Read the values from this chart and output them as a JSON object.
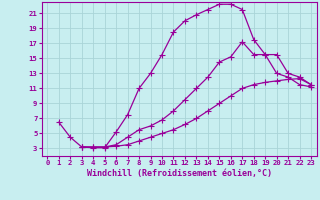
{
  "background_color": "#c8eef0",
  "grid_color": "#aad4d8",
  "line_color": "#990099",
  "xlabel": "Windchill (Refroidissement éolien,°C)",
  "xlim": [
    -0.5,
    23.5
  ],
  "ylim": [
    2,
    22.5
  ],
  "xticks": [
    0,
    1,
    2,
    3,
    4,
    5,
    6,
    7,
    8,
    9,
    10,
    11,
    12,
    13,
    14,
    15,
    16,
    17,
    18,
    19,
    20,
    21,
    22,
    23
  ],
  "yticks": [
    3,
    5,
    7,
    9,
    11,
    13,
    15,
    17,
    19,
    21
  ],
  "curve1_x": [
    1,
    2,
    3,
    4,
    5,
    6,
    7,
    8,
    9,
    10,
    11,
    12,
    13,
    14,
    15,
    16,
    17,
    18,
    19,
    20,
    21,
    22,
    23
  ],
  "curve1_y": [
    6.5,
    4.5,
    3.2,
    3.1,
    3.1,
    5.2,
    7.5,
    11.0,
    13.0,
    15.5,
    18.5,
    20.0,
    20.8,
    21.5,
    22.2,
    22.2,
    21.5,
    17.5,
    15.5,
    13.0,
    12.5,
    11.5,
    11.2
  ],
  "curve2_x": [
    3,
    4,
    5,
    6,
    7,
    8,
    9,
    10,
    11,
    12,
    13,
    14,
    15,
    16,
    17,
    18,
    19,
    20,
    21,
    22,
    23
  ],
  "curve2_y": [
    3.2,
    3.2,
    3.2,
    3.5,
    4.5,
    5.5,
    6.0,
    6.8,
    8.0,
    9.5,
    11.0,
    12.5,
    14.5,
    15.2,
    17.2,
    15.5,
    15.5,
    15.5,
    13.0,
    12.5,
    11.5
  ],
  "curve3_x": [
    3,
    4,
    5,
    6,
    7,
    8,
    9,
    10,
    11,
    12,
    13,
    14,
    15,
    16,
    17,
    18,
    19,
    20,
    21,
    22,
    23
  ],
  "curve3_y": [
    3.2,
    3.2,
    3.2,
    3.3,
    3.5,
    4.0,
    4.5,
    5.0,
    5.5,
    6.2,
    7.0,
    8.0,
    9.0,
    10.0,
    11.0,
    11.5,
    11.8,
    12.0,
    12.2,
    12.3,
    11.5
  ],
  "marker": "+",
  "markersize": 4,
  "linewidth": 0.9,
  "tick_fontsize": 5.2,
  "xlabel_fontsize": 6.0
}
